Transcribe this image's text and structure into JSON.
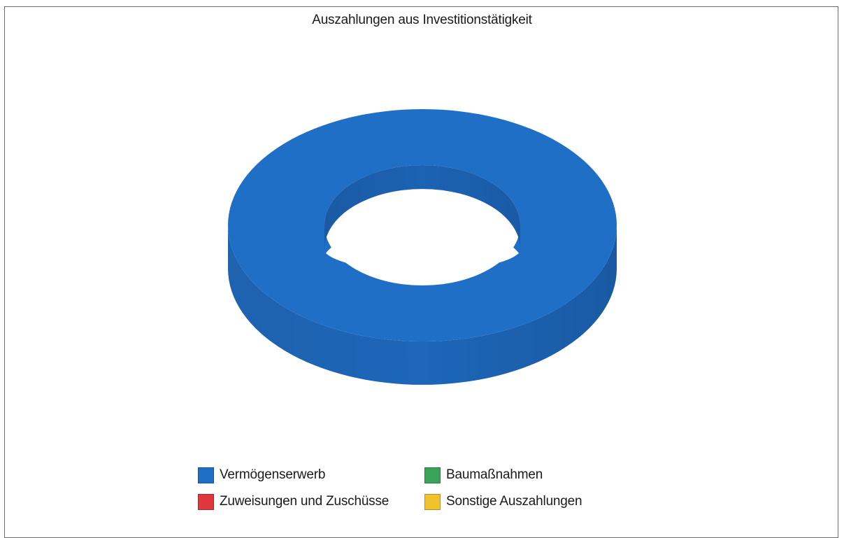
{
  "chart_data": {
    "type": "pie",
    "style": "3d-donut",
    "title": "Auszahlungen aus Investitionstätigkeit",
    "categories": [
      "Vermögenserwerb",
      "Baumaßnahmen",
      "Zuweisungen und Zuschüsse",
      "Sonstige Auszahlungen"
    ],
    "values": [
      100,
      0,
      0,
      0
    ],
    "colors": [
      "#1f6fc6",
      "#3aa35a",
      "#e2363d",
      "#f2c12e"
    ],
    "legend_position": "bottom"
  }
}
